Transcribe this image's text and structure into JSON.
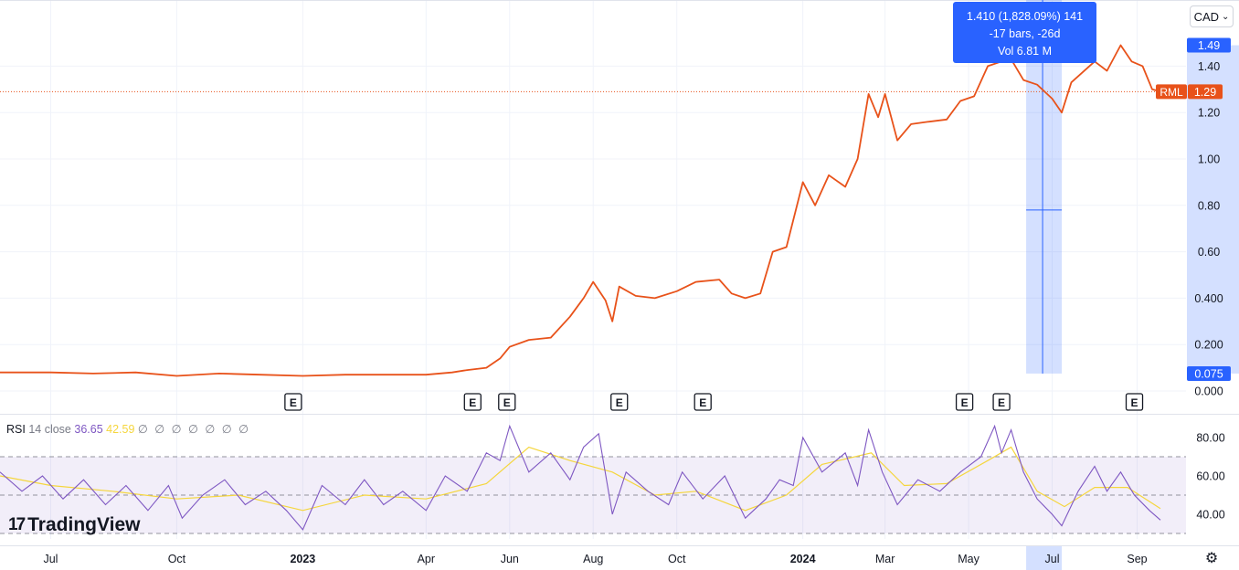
{
  "chart_data": {
    "type": "line",
    "title": "",
    "currency": "CAD",
    "symbol_label": "RML",
    "last_price": "1.29",
    "price_axis": {
      "ticks": [
        "0.000",
        "0.200",
        "0.400",
        "0.60",
        "0.80",
        "1.00",
        "1.20",
        "1.40"
      ],
      "ylim": [
        0,
        1.6
      ],
      "range_high_label": "1.49",
      "range_low_label": "0.075",
      "position": "right"
    },
    "time_axis": {
      "ticks": [
        {
          "label": "Jul",
          "date": "2022-07-01",
          "bold": false
        },
        {
          "label": "Oct",
          "date": "2022-10-01",
          "bold": false
        },
        {
          "label": "2023",
          "date": "2023-01-01",
          "bold": true
        },
        {
          "label": "Apr",
          "date": "2023-04-01",
          "bold": false
        },
        {
          "label": "Jun",
          "date": "2023-06-01",
          "bold": false
        },
        {
          "label": "Aug",
          "date": "2023-08-01",
          "bold": false
        },
        {
          "label": "Oct",
          "date": "2023-10-01",
          "bold": false
        },
        {
          "label": "2024",
          "date": "2024-01-01",
          "bold": true
        },
        {
          "label": "Mar",
          "date": "2024-03-01",
          "bold": false
        },
        {
          "label": "May",
          "date": "2024-05-01",
          "bold": false
        },
        {
          "label": "Jul",
          "date": "2024-07-01",
          "bold": false
        },
        {
          "label": "Sep",
          "date": "2024-09-01",
          "bold": false
        }
      ],
      "highlight_label": "Jul"
    },
    "series": [
      {
        "color": "#e8521a",
        "points": [
          [
            "2022-05-25",
            0.08
          ],
          [
            "2022-06-15",
            0.08
          ],
          [
            "2022-07-01",
            0.08
          ],
          [
            "2022-08-01",
            0.075
          ],
          [
            "2022-09-01",
            0.08
          ],
          [
            "2022-10-01",
            0.065
          ],
          [
            "2022-11-01",
            0.075
          ],
          [
            "2022-12-01",
            0.07
          ],
          [
            "2023-01-01",
            0.065
          ],
          [
            "2023-02-01",
            0.07
          ],
          [
            "2023-03-01",
            0.07
          ],
          [
            "2023-04-01",
            0.07
          ],
          [
            "2023-04-20",
            0.08
          ],
          [
            "2023-05-01",
            0.09
          ],
          [
            "2023-05-15",
            0.1
          ],
          [
            "2023-05-25",
            0.14
          ],
          [
            "2023-06-01",
            0.19
          ],
          [
            "2023-06-15",
            0.22
          ],
          [
            "2023-07-01",
            0.23
          ],
          [
            "2023-07-15",
            0.32
          ],
          [
            "2023-07-25",
            0.4
          ],
          [
            "2023-08-01",
            0.47
          ],
          [
            "2023-08-10",
            0.39
          ],
          [
            "2023-08-15",
            0.3
          ],
          [
            "2023-08-20",
            0.45
          ],
          [
            "2023-09-01",
            0.41
          ],
          [
            "2023-09-15",
            0.4
          ],
          [
            "2023-10-01",
            0.43
          ],
          [
            "2023-10-15",
            0.47
          ],
          [
            "2023-11-01",
            0.48
          ],
          [
            "2023-11-10",
            0.42
          ],
          [
            "2023-11-20",
            0.4
          ],
          [
            "2023-12-01",
            0.42
          ],
          [
            "2023-12-10",
            0.6
          ],
          [
            "2023-12-20",
            0.62
          ],
          [
            "2024-01-01",
            0.9
          ],
          [
            "2024-01-10",
            0.8
          ],
          [
            "2024-01-20",
            0.93
          ],
          [
            "2024-02-01",
            0.88
          ],
          [
            "2024-02-10",
            1.0
          ],
          [
            "2024-02-18",
            1.28
          ],
          [
            "2024-02-25",
            1.18
          ],
          [
            "2024-03-01",
            1.28
          ],
          [
            "2024-03-10",
            1.08
          ],
          [
            "2024-03-20",
            1.15
          ],
          [
            "2024-04-01",
            1.16
          ],
          [
            "2024-04-15",
            1.17
          ],
          [
            "2024-04-25",
            1.25
          ],
          [
            "2024-05-05",
            1.27
          ],
          [
            "2024-05-15",
            1.4
          ],
          [
            "2024-05-25",
            1.42
          ],
          [
            "2024-06-01",
            1.43
          ],
          [
            "2024-06-10",
            1.34
          ],
          [
            "2024-06-20",
            1.32
          ],
          [
            "2024-07-01",
            1.26
          ],
          [
            "2024-07-08",
            1.2
          ],
          [
            "2024-07-15",
            1.33
          ],
          [
            "2024-08-01",
            1.42
          ],
          [
            "2024-08-10",
            1.38
          ],
          [
            "2024-08-20",
            1.49
          ],
          [
            "2024-08-28",
            1.42
          ],
          [
            "2024-09-05",
            1.4
          ],
          [
            "2024-09-12",
            1.3
          ],
          [
            "2024-09-18",
            1.29
          ]
        ]
      }
    ],
    "earnings_markers": {
      "label": "E",
      "dates": [
        "2022-12-25",
        "2023-05-05",
        "2023-05-30",
        "2023-08-20",
        "2023-10-20",
        "2024-04-28",
        "2024-05-25",
        "2024-08-30"
      ]
    },
    "measure": {
      "start_date": "2024-06-12",
      "end_date": "2024-07-08",
      "cursor_date": "2024-06-24",
      "cursor_price": 0.78,
      "tooltip_line1": "1.410 (1,828.09%) 141",
      "tooltip_line2": "-17 bars, -26d",
      "tooltip_line3": "Vol 6.81 M"
    },
    "rsi": {
      "label": "RSI",
      "params": "14 close",
      "value": "36.65",
      "ma_value": "42.59",
      "extra": "∅ ∅ ∅ ∅ ∅ ∅ ∅",
      "ticks": [
        "40.00",
        "60.00",
        "80.00"
      ],
      "upper_band": 70,
      "middle_band": 50,
      "lower_band": 30,
      "ylim": [
        20,
        90
      ],
      "rsi_color": "#7e57c2",
      "ma_color": "#f5d63d",
      "rsi_points": [
        [
          "2022-05-25",
          62
        ],
        [
          "2022-06-10",
          52
        ],
        [
          "2022-06-25",
          60
        ],
        [
          "2022-07-10",
          48
        ],
        [
          "2022-07-25",
          58
        ],
        [
          "2022-08-10",
          45
        ],
        [
          "2022-08-25",
          55
        ],
        [
          "2022-09-10",
          42
        ],
        [
          "2022-09-25",
          55
        ],
        [
          "2022-10-05",
          38
        ],
        [
          "2022-10-20",
          50
        ],
        [
          "2022-11-05",
          58
        ],
        [
          "2022-11-20",
          45
        ],
        [
          "2022-12-05",
          52
        ],
        [
          "2022-12-20",
          42
        ],
        [
          "2023-01-01",
          32
        ],
        [
          "2023-01-15",
          55
        ],
        [
          "2023-02-01",
          45
        ],
        [
          "2023-02-15",
          58
        ],
        [
          "2023-03-01",
          45
        ],
        [
          "2023-03-15",
          52
        ],
        [
          "2023-04-01",
          42
        ],
        [
          "2023-04-15",
          60
        ],
        [
          "2023-05-01",
          52
        ],
        [
          "2023-05-15",
          72
        ],
        [
          "2023-05-25",
          68
        ],
        [
          "2023-06-01",
          86
        ],
        [
          "2023-06-15",
          62
        ],
        [
          "2023-07-01",
          72
        ],
        [
          "2023-07-15",
          58
        ],
        [
          "2023-07-25",
          75
        ],
        [
          "2023-08-05",
          82
        ],
        [
          "2023-08-15",
          40
        ],
        [
          "2023-08-25",
          62
        ],
        [
          "2023-09-10",
          52
        ],
        [
          "2023-09-25",
          45
        ],
        [
          "2023-10-05",
          62
        ],
        [
          "2023-10-20",
          48
        ],
        [
          "2023-11-05",
          60
        ],
        [
          "2023-11-20",
          38
        ],
        [
          "2023-12-05",
          48
        ],
        [
          "2023-12-15",
          58
        ],
        [
          "2023-12-25",
          55
        ],
        [
          "2024-01-01",
          80
        ],
        [
          "2024-01-15",
          62
        ],
        [
          "2024-02-01",
          72
        ],
        [
          "2024-02-10",
          55
        ],
        [
          "2024-02-18",
          84
        ],
        [
          "2024-02-28",
          62
        ],
        [
          "2024-03-10",
          45
        ],
        [
          "2024-03-25",
          58
        ],
        [
          "2024-04-10",
          52
        ],
        [
          "2024-04-25",
          62
        ],
        [
          "2024-05-10",
          70
        ],
        [
          "2024-05-20",
          86
        ],
        [
          "2024-05-25",
          72
        ],
        [
          "2024-06-01",
          84
        ],
        [
          "2024-06-10",
          62
        ],
        [
          "2024-06-20",
          48
        ],
        [
          "2024-07-01",
          40
        ],
        [
          "2024-07-08",
          34
        ],
        [
          "2024-07-20",
          52
        ],
        [
          "2024-08-01",
          65
        ],
        [
          "2024-08-10",
          52
        ],
        [
          "2024-08-20",
          62
        ],
        [
          "2024-08-30",
          50
        ],
        [
          "2024-09-10",
          42
        ],
        [
          "2024-09-18",
          37
        ]
      ],
      "ma_points": [
        [
          "2022-05-25",
          60
        ],
        [
          "2022-07-01",
          55
        ],
        [
          "2022-08-15",
          52
        ],
        [
          "2022-10-01",
          48
        ],
        [
          "2022-11-15",
          50
        ],
        [
          "2023-01-01",
          42
        ],
        [
          "2023-02-15",
          50
        ],
        [
          "2023-04-01",
          48
        ],
        [
          "2023-05-15",
          56
        ],
        [
          "2023-06-15",
          75
        ],
        [
          "2023-07-15",
          68
        ],
        [
          "2023-08-15",
          62
        ],
        [
          "2023-09-15",
          50
        ],
        [
          "2023-10-15",
          52
        ],
        [
          "2023-11-20",
          42
        ],
        [
          "2023-12-20",
          50
        ],
        [
          "2024-01-15",
          66
        ],
        [
          "2024-02-20",
          72
        ],
        [
          "2024-03-15",
          55
        ],
        [
          "2024-04-15",
          56
        ],
        [
          "2024-05-15",
          68
        ],
        [
          "2024-06-01",
          75
        ],
        [
          "2024-06-20",
          52
        ],
        [
          "2024-07-10",
          44
        ],
        [
          "2024-08-01",
          54
        ],
        [
          "2024-08-25",
          54
        ],
        [
          "2024-09-18",
          43
        ]
      ]
    }
  },
  "branding": {
    "logo_text": "TradingView"
  },
  "controls": {
    "settings_icon": "gear-icon"
  }
}
